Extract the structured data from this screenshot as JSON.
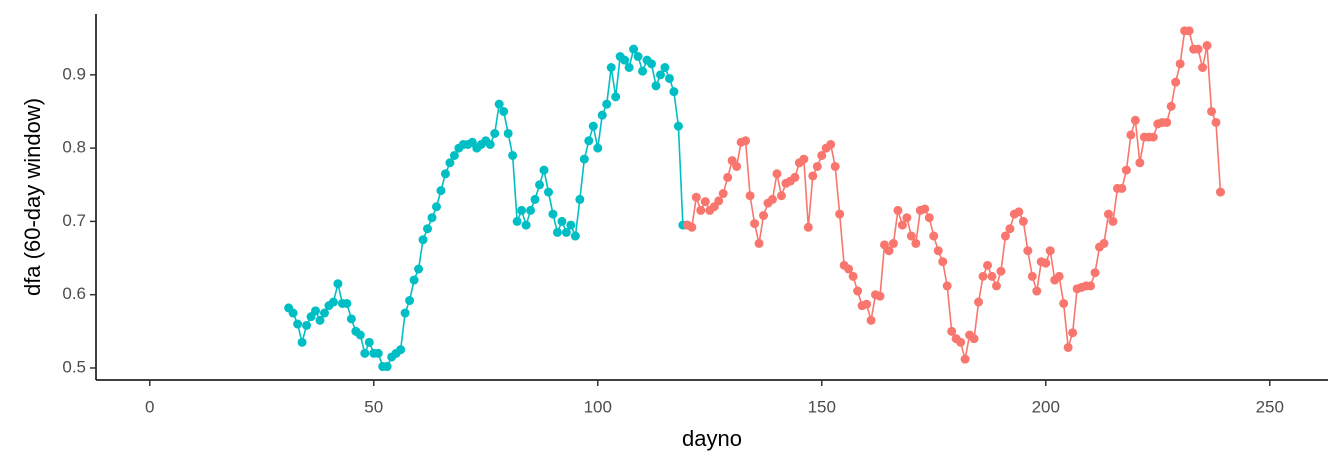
{
  "chart_data": {
    "type": "line",
    "x_label": "dayno",
    "y_label": "dfa (60-day window)",
    "xlim": [
      -12,
      263
    ],
    "ylim": [
      0.4836,
      0.983
    ],
    "xticks": [
      0,
      50,
      100,
      150,
      200,
      250
    ],
    "yticks": [
      0.5,
      0.6,
      0.7,
      0.8,
      0.9
    ],
    "grid": false,
    "series": [
      {
        "color": "#00BFC4",
        "x": [
          31,
          32,
          33,
          34,
          35,
          36,
          37,
          38,
          39,
          40,
          41,
          42,
          43,
          44,
          45,
          46,
          47,
          48,
          49,
          50,
          51,
          52,
          53,
          54,
          55,
          56,
          57,
          58,
          59,
          60,
          61,
          62,
          63,
          64,
          65,
          66,
          67,
          68,
          69,
          70,
          71,
          72,
          73,
          74,
          75,
          76,
          77,
          78,
          79,
          80,
          81,
          82,
          83,
          84,
          85,
          86,
          87,
          88,
          89,
          90,
          91,
          92,
          93,
          94,
          95,
          96,
          97,
          98,
          99,
          100,
          101,
          102,
          103,
          104,
          105,
          106,
          107,
          108,
          109,
          110,
          111,
          112,
          113,
          114,
          115,
          116,
          117,
          118,
          119,
          120
        ],
        "values": [
          0.582,
          0.575,
          0.56,
          0.535,
          0.558,
          0.57,
          0.578,
          0.565,
          0.575,
          0.585,
          0.59,
          0.615,
          0.588,
          0.588,
          0.567,
          0.55,
          0.545,
          0.52,
          0.535,
          0.52,
          0.52,
          0.502,
          0.502,
          0.515,
          0.52,
          0.525,
          0.575,
          0.592,
          0.62,
          0.635,
          0.675,
          0.69,
          0.705,
          0.72,
          0.742,
          0.765,
          0.78,
          0.79,
          0.8,
          0.805,
          0.805,
          0.808,
          0.8,
          0.805,
          0.81,
          0.805,
          0.82,
          0.86,
          0.85,
          0.82,
          0.79,
          0.7,
          0.715,
          0.695,
          0.715,
          0.73,
          0.75,
          0.77,
          0.74,
          0.71,
          0.685,
          0.7,
          0.685,
          0.695,
          0.68,
          0.73,
          0.785,
          0.81,
          0.83,
          0.8,
          0.845,
          0.86,
          0.91,
          0.87,
          0.925,
          0.92,
          0.91,
          0.935,
          0.925,
          0.905,
          0.92,
          0.915,
          0.885,
          0.9,
          0.91,
          0.895,
          0.877,
          0.83,
          0.695,
          0.695
        ]
      },
      {
        "color": "#F8766D",
        "x": [
          120,
          121,
          122,
          123,
          124,
          125,
          126,
          127,
          128,
          129,
          130,
          131,
          132,
          133,
          134,
          135,
          136,
          137,
          138,
          139,
          140,
          141,
          142,
          143,
          144,
          145,
          146,
          147,
          148,
          149,
          150,
          151,
          152,
          153,
          154,
          155,
          156,
          157,
          158,
          159,
          160,
          161,
          162,
          163,
          164,
          165,
          166,
          167,
          168,
          169,
          170,
          171,
          172,
          173,
          174,
          175,
          176,
          177,
          178,
          179,
          180,
          181,
          182,
          183,
          184,
          185,
          186,
          187,
          188,
          189,
          190,
          191,
          192,
          193,
          194,
          195,
          196,
          197,
          198,
          199,
          200,
          201,
          202,
          203,
          204,
          205,
          206,
          207,
          208,
          209,
          210,
          211,
          212,
          213,
          214,
          215,
          216,
          217,
          218,
          219,
          220,
          221,
          222,
          223,
          224,
          225,
          226,
          227,
          228,
          229,
          230,
          231,
          232,
          233,
          234,
          235,
          236,
          237,
          238,
          239
        ],
        "values": [
          0.695,
          0.692,
          0.733,
          0.715,
          0.727,
          0.715,
          0.72,
          0.728,
          0.738,
          0.76,
          0.783,
          0.775,
          0.808,
          0.81,
          0.735,
          0.697,
          0.67,
          0.708,
          0.725,
          0.73,
          0.765,
          0.735,
          0.752,
          0.755,
          0.76,
          0.78,
          0.785,
          0.692,
          0.762,
          0.775,
          0.79,
          0.8,
          0.805,
          0.775,
          0.71,
          0.64,
          0.635,
          0.625,
          0.605,
          0.585,
          0.587,
          0.565,
          0.6,
          0.598,
          0.668,
          0.66,
          0.67,
          0.715,
          0.695,
          0.705,
          0.68,
          0.67,
          0.715,
          0.717,
          0.705,
          0.68,
          0.66,
          0.645,
          0.612,
          0.55,
          0.54,
          0.535,
          0.512,
          0.545,
          0.54,
          0.59,
          0.625,
          0.64,
          0.625,
          0.612,
          0.632,
          0.68,
          0.69,
          0.71,
          0.713,
          0.7,
          0.66,
          0.625,
          0.605,
          0.645,
          0.643,
          0.66,
          0.62,
          0.625,
          0.588,
          0.528,
          0.548,
          0.608,
          0.61,
          0.612,
          0.612,
          0.63,
          0.665,
          0.67,
          0.71,
          0.7,
          0.745,
          0.745,
          0.77,
          0.818,
          0.838,
          0.78,
          0.815,
          0.815,
          0.815,
          0.833,
          0.835,
          0.835,
          0.857,
          0.89,
          0.915,
          0.96,
          0.96,
          0.935,
          0.935,
          0.91,
          0.94,
          0.85,
          0.835,
          0.74
        ]
      }
    ]
  }
}
